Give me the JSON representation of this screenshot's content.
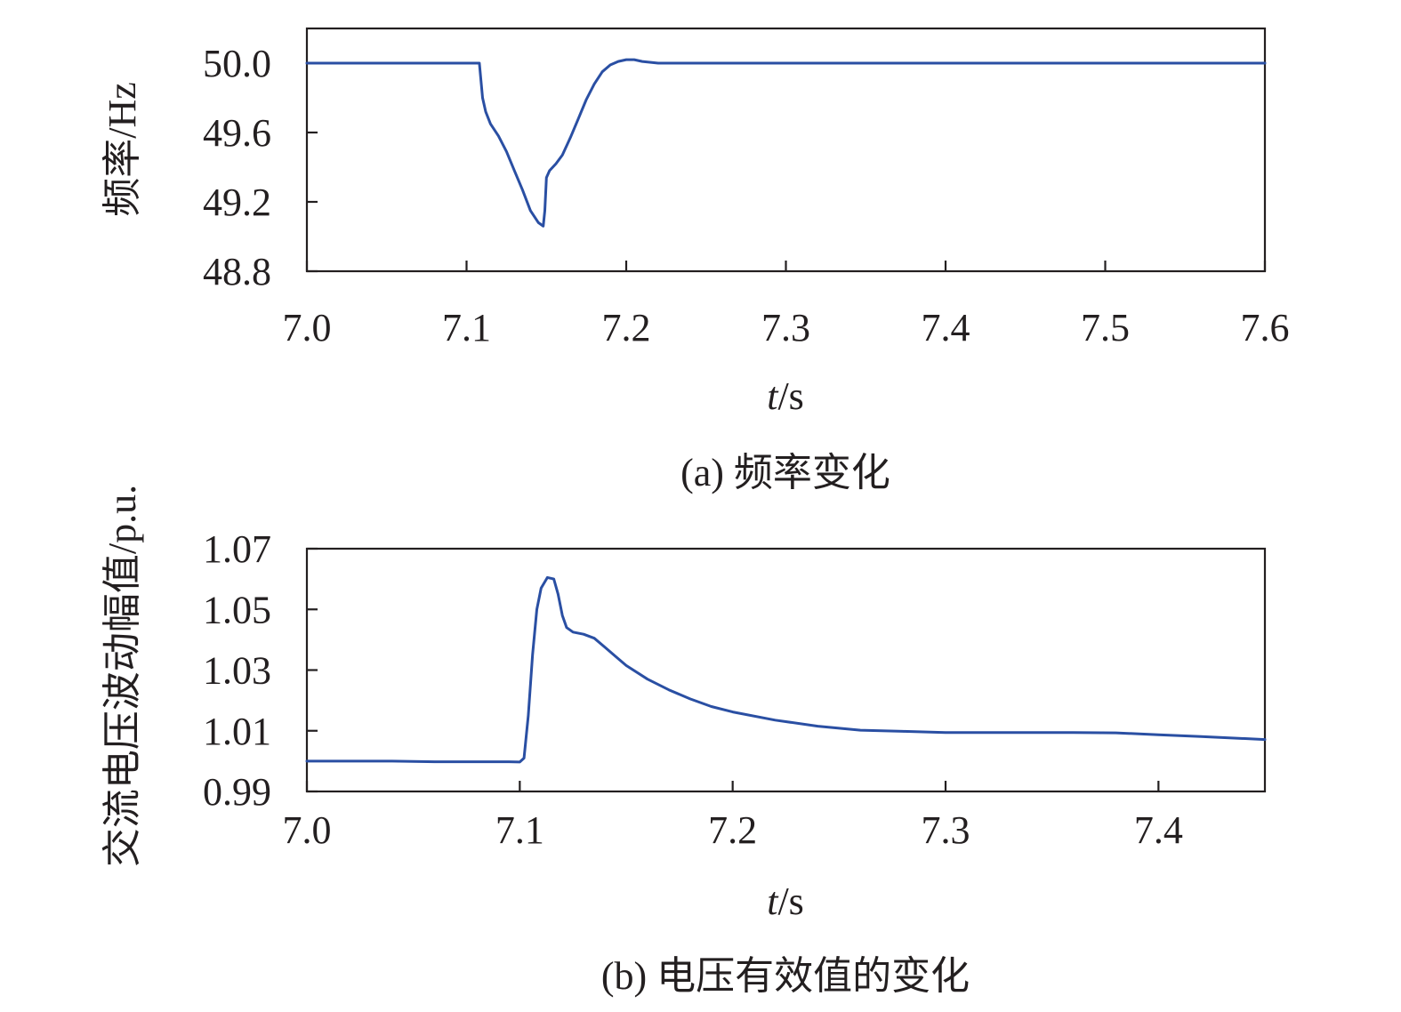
{
  "colors": {
    "series": "#2a4fa3",
    "axis": "#231f20",
    "background": "#ffffff"
  },
  "chart_data": [
    {
      "type": "line",
      "caption": "(a) 频率变化",
      "xlabel_italic": "t",
      "xlabel_unit": "/s",
      "ylabel": "频率/Hz",
      "xlim": [
        7.0,
        7.6
      ],
      "ylim": [
        48.8,
        50.2
      ],
      "xticks": [
        "7.0",
        "7.1",
        "7.2",
        "7.3",
        "7.4",
        "7.5",
        "7.6"
      ],
      "xtick_values": [
        7.0,
        7.1,
        7.2,
        7.3,
        7.4,
        7.5,
        7.6
      ],
      "yticks": [
        "50.0",
        "49.6",
        "49.2",
        "48.8"
      ],
      "ytick_values": [
        50.0,
        49.6,
        49.2,
        48.8
      ],
      "grid": false,
      "series": [
        {
          "color": "#2a4fa3",
          "x": [
            7.0,
            7.05,
            7.108,
            7.109,
            7.11,
            7.112,
            7.115,
            7.12,
            7.125,
            7.13,
            7.135,
            7.14,
            7.145,
            7.148,
            7.149,
            7.15,
            7.152,
            7.156,
            7.16,
            7.165,
            7.17,
            7.175,
            7.18,
            7.185,
            7.19,
            7.195,
            7.2,
            7.205,
            7.21,
            7.22,
            7.23,
            7.25,
            7.3,
            7.4,
            7.5,
            7.6
          ],
          "y": [
            50.0,
            50.0,
            50.0,
            49.9,
            49.8,
            49.72,
            49.65,
            49.58,
            49.49,
            49.38,
            49.27,
            49.15,
            49.08,
            49.06,
            49.15,
            49.34,
            49.38,
            49.42,
            49.47,
            49.57,
            49.68,
            49.79,
            49.88,
            49.95,
            49.99,
            50.01,
            50.02,
            50.02,
            50.01,
            50.0,
            50.0,
            50.0,
            50.0,
            50.0,
            50.0,
            50.0
          ]
        }
      ]
    },
    {
      "type": "line",
      "caption": "(b) 电压有效值的变化",
      "xlabel_italic": "t",
      "xlabel_unit": "/s",
      "ylabel": "交流电压波动幅值/p.u.",
      "xlim": [
        7.0,
        7.45
      ],
      "ylim": [
        0.99,
        1.07
      ],
      "xticks": [
        "7.0",
        "7.1",
        "7.2",
        "7.3",
        "7.4"
      ],
      "xtick_values": [
        7.0,
        7.1,
        7.2,
        7.3,
        7.4
      ],
      "yticks": [
        "1.07",
        "1.05",
        "1.03",
        "1.01",
        "0.99"
      ],
      "ytick_values": [
        1.07,
        1.05,
        1.03,
        1.01,
        0.99
      ],
      "grid": false,
      "series": [
        {
          "color": "#2a4fa3",
          "x": [
            7.0,
            7.02,
            7.04,
            7.06,
            7.08,
            7.095,
            7.1,
            7.102,
            7.104,
            7.106,
            7.108,
            7.11,
            7.113,
            7.116,
            7.118,
            7.12,
            7.122,
            7.125,
            7.13,
            7.135,
            7.14,
            7.145,
            7.15,
            7.16,
            7.17,
            7.18,
            7.19,
            7.2,
            7.22,
            7.24,
            7.26,
            7.28,
            7.3,
            7.32,
            7.34,
            7.36,
            7.38,
            7.4,
            7.42,
            7.45
          ],
          "y": [
            1.0,
            1.0,
            1.0,
            0.9998,
            0.9998,
            0.9998,
            0.9997,
            1.001,
            1.015,
            1.035,
            1.05,
            1.057,
            1.0605,
            1.06,
            1.055,
            1.048,
            1.044,
            1.0425,
            1.0418,
            1.0405,
            1.0375,
            1.0345,
            1.0315,
            1.027,
            1.0235,
            1.0205,
            1.018,
            1.0162,
            1.0135,
            1.0115,
            1.0102,
            1.0098,
            1.0094,
            1.0094,
            1.0094,
            1.0094,
            1.0093,
            1.0087,
            1.0081,
            1.0071
          ]
        }
      ]
    }
  ]
}
